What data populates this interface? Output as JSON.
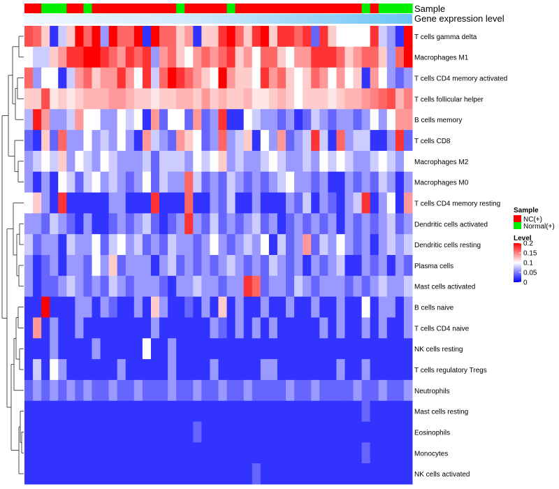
{
  "chart_data": {
    "type": "heatmap",
    "title": "",
    "annotation_tracks": {
      "sample_label": "Sample",
      "gene_expression_label": "Gene expression level"
    },
    "rows": [
      "T cells gamma delta",
      "Macrophages M1",
      "T cells CD4 memory activated",
      "T cells follicular helper",
      "B cells memory",
      "T cells CD8",
      "Macrophages M2",
      "Macrophages M0",
      "T cells CD4 memory resting",
      "Dendritic cells activated",
      "Dendritic cells resting",
      "Plasma cells",
      "Mast cells activated",
      "B cells naive",
      "T cells CD4 naive",
      "NK cells resting",
      "T cells regulatory  Tregs",
      "Neutrophils",
      "Mast cells resting",
      "Eosinophils",
      "Monocytes",
      "NK cells activated"
    ],
    "sample_groups": [
      "NC",
      "NC",
      "Normal",
      "Normal",
      "Normal",
      "NC",
      "NC",
      "Normal",
      "NC",
      "NC",
      "NC",
      "NC",
      "NC",
      "NC",
      "NC",
      "NC",
      "NC",
      "NC",
      "Normal",
      "NC",
      "NC",
      "NC",
      "NC",
      "NC",
      "Normal",
      "NC",
      "NC",
      "NC",
      "NC",
      "NC",
      "NC",
      "NC",
      "NC",
      "NC",
      "NC",
      "NC",
      "NC",
      "NC",
      "NC",
      "NC",
      "Normal",
      "NC",
      "Normal",
      "Normal",
      "Normal",
      "Normal"
    ],
    "gene_expression_level": [
      0.0,
      0.0,
      0.0,
      0.0,
      0.0,
      0.0,
      0.0,
      0.0,
      0.0,
      0.0,
      0.0,
      0.0,
      0.0,
      0.0,
      0.0,
      0.0,
      0.0,
      0.0,
      0.0,
      0.0,
      0.0,
      0.0,
      0.0,
      0.0,
      0.0,
      0.0,
      0.0,
      0.0,
      0.0,
      0.0,
      0.0,
      0.0,
      0.0,
      0.0,
      0.0,
      0.0,
      0.0,
      0.0,
      0.0,
      0.0,
      0.0,
      0.0,
      0.0,
      0.0,
      0.0,
      0.0
    ],
    "values_seed_rows": [
      [
        0.17,
        0.16,
        0.12,
        0.02,
        0.08,
        0.12,
        0.2,
        0.16,
        0.2,
        0.06,
        0.2,
        0.16,
        0.16,
        0.2,
        0.02,
        0.2,
        0.16,
        0.16,
        0.12,
        0.14,
        0.02,
        0.12,
        0.12,
        0.18,
        0.2,
        0.16,
        0.12,
        0.18,
        0.2,
        0.12,
        0.18,
        0.18,
        0.16,
        0.18,
        0.04,
        0.18,
        0.12,
        0.1,
        0.1,
        0.1,
        0.1,
        0.18,
        0.08,
        0.06,
        0.02,
        0.2
      ],
      [
        0.1,
        0.08,
        0.08,
        0.12,
        0.14,
        0.18,
        0.18,
        0.2,
        0.2,
        0.18,
        0.16,
        0.14,
        0.18,
        0.16,
        0.18,
        0.06,
        0.14,
        0.16,
        0.12,
        0.1,
        0.14,
        0.16,
        0.14,
        0.16,
        0.18,
        0.12,
        0.14,
        0.1,
        0.16,
        0.16,
        0.12,
        0.1,
        0.14,
        0.14,
        0.18,
        0.18,
        0.18,
        0.16,
        0.12,
        0.14,
        0.16,
        0.16,
        0.12,
        0.06,
        0.16,
        0.2
      ],
      [
        0.16,
        0.06,
        0.1,
        0.1,
        0.02,
        0.08,
        0.14,
        0.16,
        0.12,
        0.14,
        0.14,
        0.18,
        0.14,
        0.1,
        0.18,
        0.08,
        0.16,
        0.2,
        0.18,
        0.16,
        0.14,
        0.12,
        0.1,
        0.2,
        0.14,
        0.12,
        0.12,
        0.1,
        0.18,
        0.14,
        0.16,
        0.12,
        0.1,
        0.12,
        0.16,
        0.14,
        0.1,
        0.14,
        0.1,
        0.12,
        0.02,
        0.14,
        0.1,
        0.06,
        0.04,
        0.06
      ],
      [
        0.12,
        0.12,
        0.17,
        0.11,
        0.12,
        0.11,
        0.12,
        0.13,
        0.13,
        0.13,
        0.14,
        0.14,
        0.13,
        0.12,
        0.12,
        0.11,
        0.12,
        0.12,
        0.13,
        0.13,
        0.12,
        0.14,
        0.12,
        0.13,
        0.12,
        0.12,
        0.13,
        0.11,
        0.11,
        0.12,
        0.13,
        0.12,
        0.1,
        0.12,
        0.12,
        0.12,
        0.11,
        0.12,
        0.13,
        0.13,
        0.14,
        0.15,
        0.16,
        0.17,
        0.13,
        0.15
      ],
      [
        0.07,
        0.19,
        0.14,
        0.06,
        0.06,
        0.08,
        0.14,
        0.1,
        0.1,
        0.06,
        0.06,
        0.1,
        0.08,
        0.1,
        0.02,
        0.14,
        0.04,
        0.1,
        0.1,
        0.04,
        0.14,
        0.04,
        0.06,
        0.18,
        0.02,
        0.02,
        0.1,
        0.08,
        0.06,
        0.06,
        0.04,
        0.06,
        0.02,
        0.04,
        0.08,
        0.06,
        0.04,
        0.06,
        0.06,
        0.04,
        0.06,
        0.1,
        0.06,
        0.1,
        0.14,
        0.14
      ],
      [
        0.04,
        0.02,
        0.12,
        0.04,
        0.16,
        0.06,
        0.06,
        0.1,
        0.06,
        0.08,
        0.06,
        0.1,
        0.06,
        0.02,
        0.14,
        0.08,
        0.06,
        0.04,
        0.14,
        0.12,
        0.1,
        0.04,
        0.06,
        0.16,
        0.06,
        0.08,
        0.12,
        0.02,
        0.1,
        0.06,
        0.14,
        0.04,
        0.06,
        0.08,
        0.18,
        0.08,
        0.02,
        0.16,
        0.06,
        0.08,
        0.08,
        0.02,
        0.02,
        0.06,
        0.18,
        0.04
      ],
      [
        0.06,
        0.08,
        0.1,
        0.08,
        0.12,
        0.06,
        0.1,
        0.08,
        0.06,
        0.1,
        0.08,
        0.06,
        0.06,
        0.06,
        0.08,
        0.04,
        0.08,
        0.08,
        0.08,
        0.06,
        0.1,
        0.08,
        0.1,
        0.12,
        0.06,
        0.08,
        0.06,
        0.06,
        0.08,
        0.1,
        0.08,
        0.06,
        0.06,
        0.08,
        0.06,
        0.1,
        0.08,
        0.1,
        0.08,
        0.06,
        0.06,
        0.08,
        0.1,
        0.08,
        0.06,
        0.1
      ],
      [
        0.06,
        0.02,
        0.06,
        0.02,
        0.1,
        0.08,
        0.04,
        0.08,
        0.1,
        0.06,
        0.08,
        0.06,
        0.04,
        0.06,
        0.1,
        0.04,
        0.08,
        0.06,
        0.06,
        0.16,
        0.08,
        0.04,
        0.06,
        0.04,
        0.08,
        0.06,
        0.04,
        0.06,
        0.04,
        0.06,
        0.08,
        0.1,
        0.06,
        0.06,
        0.04,
        0.06,
        0.02,
        0.02,
        0.06,
        0.04,
        0.06,
        0.04,
        0.08,
        0.06,
        0.02,
        0.06
      ],
      [
        0.1,
        0.12,
        0.06,
        0.02,
        0.18,
        0.02,
        0.02,
        0.02,
        0.02,
        0.02,
        0.06,
        0.06,
        0.02,
        0.02,
        0.02,
        0.18,
        0.02,
        0.02,
        0.02,
        0.16,
        0.02,
        0.02,
        0.06,
        0.04,
        0.08,
        0.02,
        0.02,
        0.06,
        0.02,
        0.02,
        0.02,
        0.06,
        0.04,
        0.08,
        0.02,
        0.06,
        0.04,
        0.02,
        0.06,
        0.08,
        0.18,
        0.02,
        0.06,
        0.1,
        0.02,
        0.14
      ],
      [
        0.06,
        0.06,
        0.04,
        0.08,
        0.06,
        0.04,
        0.02,
        0.06,
        0.02,
        0.02,
        0.04,
        0.06,
        0.04,
        0.06,
        0.08,
        0.04,
        0.02,
        0.04,
        0.06,
        0.18,
        0.06,
        0.04,
        0.08,
        0.04,
        0.06,
        0.04,
        0.06,
        0.08,
        0.04,
        0.06,
        0.02,
        0.04,
        0.06,
        0.04,
        0.06,
        0.04,
        0.06,
        0.02,
        0.06,
        0.04,
        0.06,
        0.04,
        0.06,
        0.08,
        0.04,
        0.06
      ],
      [
        0.08,
        0.04,
        0.06,
        0.06,
        0.02,
        0.08,
        0.06,
        0.06,
        0.1,
        0.04,
        0.08,
        0.1,
        0.06,
        0.08,
        0.04,
        0.06,
        0.04,
        0.08,
        0.06,
        0.06,
        0.04,
        0.06,
        0.1,
        0.06,
        0.04,
        0.06,
        0.08,
        0.06,
        0.1,
        0.02,
        0.08,
        0.04,
        0.06,
        0.14,
        0.04,
        0.08,
        0.06,
        0.1,
        0.06,
        0.04,
        0.06,
        0.02,
        0.06,
        0.08,
        0.06,
        0.08
      ],
      [
        0.06,
        0.02,
        0.04,
        0.06,
        0.02,
        0.06,
        0.06,
        0.04,
        0.1,
        0.06,
        0.12,
        0.04,
        0.06,
        0.06,
        0.06,
        0.02,
        0.06,
        0.08,
        0.04,
        0.06,
        0.04,
        0.06,
        0.04,
        0.06,
        0.08,
        0.06,
        0.04,
        0.06,
        0.04,
        0.08,
        0.06,
        0.04,
        0.06,
        0.02,
        0.06,
        0.04,
        0.06,
        0.08,
        0.02,
        0.02,
        0.06,
        0.04,
        0.06,
        0.02,
        0.06,
        0.04
      ],
      [
        0.06,
        0.02,
        0.04,
        0.04,
        0.06,
        0.08,
        0.06,
        0.04,
        0.06,
        0.04,
        0.08,
        0.06,
        0.04,
        0.06,
        0.06,
        0.06,
        0.04,
        0.02,
        0.06,
        0.06,
        0.08,
        0.06,
        0.06,
        0.04,
        0.06,
        0.06,
        0.18,
        0.16,
        0.04,
        0.06,
        0.06,
        0.04,
        0.08,
        0.06,
        0.04,
        0.06,
        0.06,
        0.06,
        0.04,
        0.06,
        0.04,
        0.06,
        0.08,
        0.06,
        0.06,
        0.08
      ],
      [
        0.02,
        0.02,
        0.2,
        0.02,
        0.02,
        0.02,
        0.06,
        0.06,
        0.02,
        0.06,
        0.04,
        0.02,
        0.02,
        0.06,
        0.02,
        0.12,
        0.06,
        0.02,
        0.02,
        0.04,
        0.02,
        0.06,
        0.02,
        0.12,
        0.02,
        0.06,
        0.02,
        0.02,
        0.06,
        0.02,
        0.02,
        0.06,
        0.02,
        0.02,
        0.06,
        0.02,
        0.02,
        0.06,
        0.02,
        0.02,
        0.1,
        0.02,
        0.06,
        0.06,
        0.02,
        0.06
      ],
      [
        0.02,
        0.14,
        0.02,
        0.06,
        0.02,
        0.02,
        0.06,
        0.02,
        0.02,
        0.02,
        0.02,
        0.02,
        0.02,
        0.02,
        0.02,
        0.06,
        0.02,
        0.02,
        0.02,
        0.02,
        0.02,
        0.02,
        0.06,
        0.04,
        0.02,
        0.06,
        0.02,
        0.06,
        0.02,
        0.06,
        0.02,
        0.02,
        0.02,
        0.02,
        0.02,
        0.06,
        0.02,
        0.06,
        0.02,
        0.02,
        0.06,
        0.02,
        0.06,
        0.02,
        0.02,
        0.06
      ],
      [
        0.02,
        0.02,
        0.02,
        0.06,
        0.02,
        0.02,
        0.02,
        0.02,
        0.06,
        0.02,
        0.02,
        0.02,
        0.02,
        0.02,
        0.1,
        0.02,
        0.02,
        0.06,
        0.02,
        0.02,
        0.02,
        0.02,
        0.02,
        0.02,
        0.02,
        0.02,
        0.02,
        0.02,
        0.02,
        0.02,
        0.02,
        0.02,
        0.02,
        0.02,
        0.02,
        0.02,
        0.02,
        0.02,
        0.02,
        0.02,
        0.02,
        0.02,
        0.02,
        0.02,
        0.02,
        0.02
      ],
      [
        0.02,
        0.08,
        0.02,
        0.1,
        0.06,
        0.02,
        0.02,
        0.02,
        0.02,
        0.02,
        0.02,
        0.06,
        0.02,
        0.02,
        0.02,
        0.02,
        0.02,
        0.06,
        0.02,
        0.02,
        0.02,
        0.02,
        0.06,
        0.02,
        0.02,
        0.02,
        0.02,
        0.02,
        0.06,
        0.06,
        0.02,
        0.02,
        0.02,
        0.02,
        0.02,
        0.02,
        0.02,
        0.06,
        0.02,
        0.02,
        0.06,
        0.02,
        0.02,
        0.02,
        0.02,
        0.02
      ],
      [
        0.04,
        0.06,
        0.04,
        0.06,
        0.04,
        0.06,
        0.04,
        0.06,
        0.04,
        0.04,
        0.06,
        0.04,
        0.04,
        0.06,
        0.04,
        0.04,
        0.04,
        0.06,
        0.04,
        0.04,
        0.06,
        0.04,
        0.04,
        0.06,
        0.04,
        0.04,
        0.06,
        0.04,
        0.04,
        0.04,
        0.04,
        0.06,
        0.04,
        0.04,
        0.06,
        0.04,
        0.04,
        0.04,
        0.04,
        0.06,
        0.04,
        0.04,
        0.06,
        0.04,
        0.04,
        0.06
      ],
      [
        0.02,
        0.02,
        0.02,
        0.02,
        0.02,
        0.02,
        0.02,
        0.02,
        0.02,
        0.02,
        0.02,
        0.02,
        0.02,
        0.02,
        0.02,
        0.02,
        0.02,
        0.02,
        0.02,
        0.02,
        0.02,
        0.02,
        0.02,
        0.02,
        0.02,
        0.02,
        0.02,
        0.02,
        0.02,
        0.02,
        0.02,
        0.02,
        0.02,
        0.02,
        0.02,
        0.02,
        0.02,
        0.02,
        0.02,
        0.02,
        0.04,
        0.02,
        0.02,
        0.02,
        0.02,
        0.02
      ],
      [
        0.02,
        0.02,
        0.02,
        0.02,
        0.02,
        0.02,
        0.02,
        0.02,
        0.02,
        0.02,
        0.02,
        0.02,
        0.02,
        0.02,
        0.02,
        0.02,
        0.02,
        0.02,
        0.02,
        0.02,
        0.04,
        0.02,
        0.02,
        0.02,
        0.02,
        0.02,
        0.02,
        0.02,
        0.02,
        0.02,
        0.02,
        0.02,
        0.02,
        0.02,
        0.02,
        0.02,
        0.02,
        0.02,
        0.02,
        0.02,
        0.02,
        0.02,
        0.02,
        0.02,
        0.02,
        0.02
      ],
      [
        0.02,
        0.02,
        0.02,
        0.02,
        0.02,
        0.02,
        0.02,
        0.02,
        0.02,
        0.02,
        0.02,
        0.02,
        0.02,
        0.02,
        0.02,
        0.02,
        0.02,
        0.02,
        0.02,
        0.02,
        0.02,
        0.02,
        0.02,
        0.02,
        0.02,
        0.02,
        0.02,
        0.02,
        0.02,
        0.02,
        0.02,
        0.02,
        0.02,
        0.02,
        0.02,
        0.02,
        0.02,
        0.02,
        0.02,
        0.02,
        0.04,
        0.02,
        0.02,
        0.02,
        0.02,
        0.02
      ],
      [
        0.02,
        0.02,
        0.02,
        0.02,
        0.02,
        0.02,
        0.02,
        0.02,
        0.02,
        0.02,
        0.02,
        0.02,
        0.02,
        0.02,
        0.02,
        0.02,
        0.02,
        0.02,
        0.02,
        0.02,
        0.02,
        0.02,
        0.02,
        0.02,
        0.02,
        0.02,
        0.02,
        0.04,
        0.02,
        0.02,
        0.02,
        0.02,
        0.02,
        0.02,
        0.02,
        0.02,
        0.02,
        0.02,
        0.02,
        0.02,
        0.02,
        0.02,
        0.02,
        0.02,
        0.02,
        0.02
      ]
    ],
    "color_scale": {
      "min": 0,
      "max": 0.2,
      "low_color": "#0000ff",
      "mid_color": "#ffffff",
      "high_color": "#ff0000",
      "mid_value": 0.1
    }
  },
  "legend": {
    "sample_title": "Sample",
    "sample_items": [
      {
        "label": "NC(+)",
        "color": "#ff0000"
      },
      {
        "label": "Normal(+)",
        "color": "#00ee00"
      }
    ],
    "level_title": "Level",
    "level_ticks": [
      "0.2",
      "0.15",
      "0.1",
      "0.05",
      "0"
    ],
    "level_tick_values": [
      0.2,
      0.15,
      0.1,
      0.05,
      0
    ]
  },
  "colors": {
    "nc": "#ff0000",
    "normal": "#00ee00",
    "gene_expression": "#87cefa"
  }
}
